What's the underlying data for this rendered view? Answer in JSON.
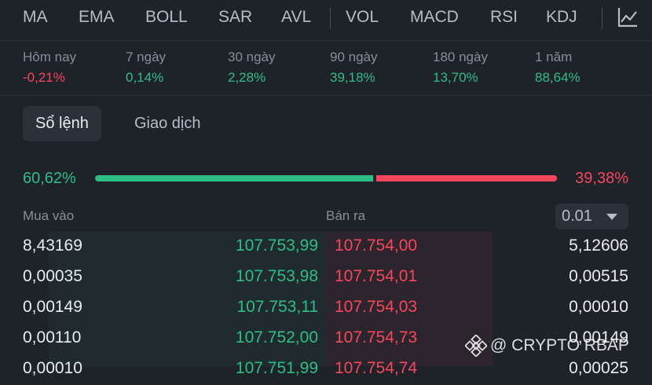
{
  "indicators": [
    "MA",
    "EMA",
    "BOLL",
    "SAR",
    "AVL",
    "VOL",
    "MACD",
    "RSI",
    "KDJ"
  ],
  "performance": [
    {
      "label": "Hôm nay",
      "value": "-0,21%",
      "trend": "down"
    },
    {
      "label": "7 ngày",
      "value": "0,14%",
      "trend": "up"
    },
    {
      "label": "30 ngày",
      "value": "2,28%",
      "trend": "up"
    },
    {
      "label": "90 ngày",
      "value": "39,18%",
      "trend": "up"
    },
    {
      "label": "180 ngày",
      "value": "13,70%",
      "trend": "up"
    },
    {
      "label": "1 năm",
      "value": "88,64%",
      "trend": "up"
    }
  ],
  "tabs": {
    "order_book": "Sổ lệnh",
    "trades": "Giao dịch"
  },
  "ratio": {
    "buy_label": "60,62%",
    "sell_label": "39,38%",
    "buy_fraction": 0.6062
  },
  "orderbook": {
    "buy_header": "Mua vào",
    "sell_header": "Bán ra",
    "precision": "0.01",
    "rows": [
      {
        "bid_qty": "8,43169",
        "bid_price": "107.753,99",
        "ask_price": "107.754,00",
        "ask_qty": "5,12606"
      },
      {
        "bid_qty": "0,00035",
        "bid_price": "107.753,98",
        "ask_price": "107.754,01",
        "ask_qty": "0,00515"
      },
      {
        "bid_qty": "0,00149",
        "bid_price": "107.753,11",
        "ask_price": "107.754,03",
        "ask_qty": "0,00010"
      },
      {
        "bid_qty": "0,00110",
        "bid_price": "107.752,00",
        "ask_price": "107.754,73",
        "ask_qty": "0,00149"
      },
      {
        "bid_qty": "0,00010",
        "bid_price": "107.751,99",
        "ask_price": "107.754,74",
        "ask_qty": "0,00025"
      }
    ],
    "bid_depth": 0.85,
    "ask_depth": 0.51
  },
  "watermark": "@ CRYPTO RBAP"
}
